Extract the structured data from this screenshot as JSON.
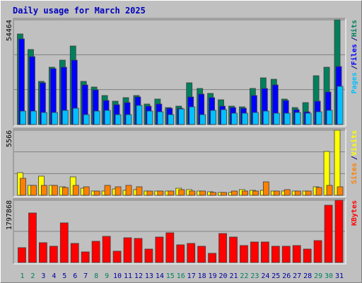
{
  "chart_data": {
    "type": "bar",
    "title": "Daily usage for March 2025",
    "categories": [
      "1",
      "2",
      "3",
      "4",
      "5",
      "6",
      "7",
      "8",
      "9",
      "10",
      "11",
      "12",
      "13",
      "14",
      "15",
      "16",
      "17",
      "18",
      "19",
      "20",
      "21",
      "22",
      "23",
      "24",
      "25",
      "26",
      "27",
      "28",
      "29",
      "30",
      "31"
    ],
    "label_colors": [
      "#00805c",
      "#00805c",
      "#0000a0",
      "#0000a0",
      "#0000a0",
      "#0000a0",
      "#0000a0",
      "#00805c",
      "#00805c",
      "#0000a0",
      "#0000a0",
      "#0000a0",
      "#0000a0",
      "#0000a0",
      "#00805c",
      "#00805c",
      "#0000a0",
      "#0000a0",
      "#0000a0",
      "#0000a0",
      "#0000a0",
      "#00805c",
      "#00805c",
      "#0000a0",
      "#0000a0",
      "#0000a0",
      "#0000a0",
      "#0000a0",
      "#00805c",
      "#00805c",
      "#0000a0"
    ],
    "legend_separator": "/",
    "panels": [
      {
        "ylim": [
          0,
          54464
        ],
        "yticks": [
          54464
        ],
        "series": [
          {
            "name": "Pages",
            "color": "#00c0ff",
            "values": [
              6992,
              6992,
              6256,
              6256,
              7360,
              8464,
              5152,
              6992,
              7360,
              5152,
              5152,
              9936,
              6992,
              6624,
              5152,
              8096,
              9200,
              5152,
              7360,
              7728,
              5888,
              5888,
              6256,
              6992,
              5888,
              5888,
              6256,
              5888,
              6624,
              7360,
              19872
            ]
          },
          {
            "name": "Files",
            "color": "#0000ff",
            "values": [
              44528,
              35328,
              21712,
              29072,
              29808,
              33488,
              20608,
              18032,
              12512,
              10304,
              11408,
              14352,
              9568,
              10672,
              8464,
              8464,
              14352,
              15824,
              13984,
              9568,
              8832,
              8464,
              15088,
              18768,
              20608,
              12512,
              7728,
              6624,
              12144,
              16928,
              30176
            ]
          },
          {
            "name": "Hits",
            "color": "#00805c",
            "values": [
              47104,
              39008,
              22448,
              29808,
              33488,
              40848,
              22448,
              19504,
              15088,
              12144,
              13984,
              15088,
              10672,
              13248,
              8832,
              9568,
              21712,
              18768,
              16192,
              12880,
              9568,
              9200,
              18768,
              24288,
              23552,
              13248,
              8832,
              11408,
              25392,
              29808,
              54464
            ]
          }
        ]
      },
      {
        "ylim": [
          0,
          5566
        ],
        "yticks": [
          5566
        ],
        "series": [
          {
            "name": "Sites",
            "color": "#ff8000",
            "values": [
              1452,
              847,
              847,
              847,
              666,
              847,
              726,
              363,
              847,
              726,
              847,
              726,
              363,
              363,
              363,
              484,
              363,
              363,
              242,
              242,
              363,
              363,
              363,
              1150,
              363,
              484,
              363,
              363,
              666,
              847,
              726
            ]
          },
          {
            "name": "Visits",
            "color": "#ffff00",
            "values": [
              1936,
              847,
              1634,
              847,
              726,
              1573,
              605,
              363,
              363,
              545,
              424,
              484,
              363,
              363,
              363,
              605,
              484,
              363,
              303,
              242,
              242,
              484,
              424,
              424,
              363,
              363,
              363,
              363,
              726,
              3751,
              5566
            ]
          }
        ]
      },
      {
        "ylim": [
          0,
          1797868
        ],
        "yticks": [
          1797868
        ],
        "series": [
          {
            "name": "KBytes",
            "color": "#ff0000",
            "values": [
              429030,
              1430100,
              572040,
              469890,
              1144080,
              551610,
              306450,
              612900,
              755910,
              326880,
              715050,
              694620,
              388170,
              735480,
              858060,
              510750,
              551610,
              469890,
              265590,
              837630,
              735480,
              490320,
              592470,
              592470,
              469890,
              469890,
              490320,
              388170,
              633330,
              1654830,
              1797868
            ]
          }
        ]
      }
    ]
  }
}
